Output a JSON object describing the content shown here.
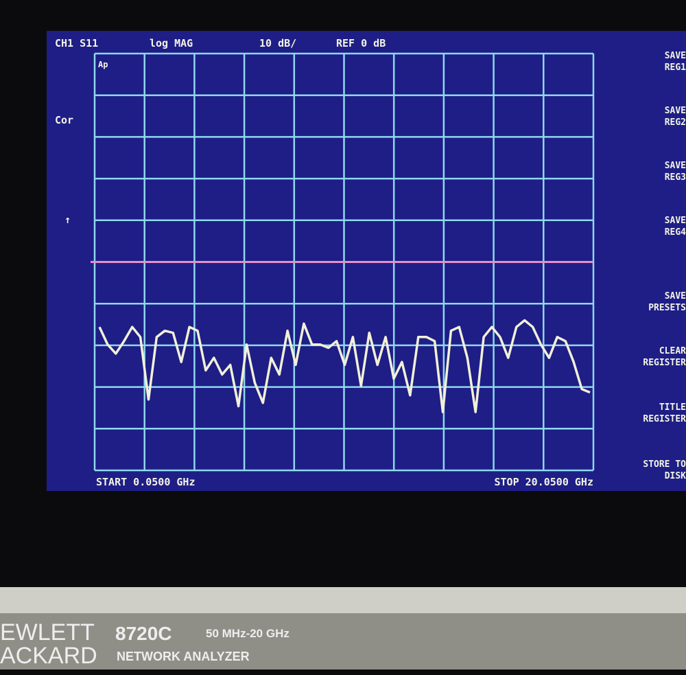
{
  "screen": {
    "header": {
      "channel": "CH1 S11",
      "format": "log MAG",
      "scale": "10 dB/",
      "reference": "REF 0 dB"
    },
    "side_labels": [
      "Cor",
      "↑"
    ],
    "grid_label": "Ap",
    "trace": {
      "ylim": [
        -50,
        50
      ],
      "reference_level": 0,
      "values": [
        -15.6,
        -19.8,
        -22,
        -19,
        -15.6,
        -18,
        -33,
        -18,
        -16.5,
        -17,
        -24,
        -15.6,
        -16.5,
        -26,
        -23,
        -27,
        -24.7,
        -34.6,
        -19.8,
        -29,
        -33.8,
        -23,
        -27,
        -16.5,
        -24.7,
        -14.8,
        -19.8,
        -19.8,
        -20.6,
        -19,
        -24.7,
        -18,
        -29.7,
        -17,
        -24.7,
        -18,
        -28,
        -24,
        -32,
        -18,
        -18,
        -19,
        -36,
        -16.5,
        -15.6,
        -23,
        -36,
        -18,
        -15.6,
        -18,
        -23,
        -15.6,
        -14,
        -15.6,
        -19.8,
        -23,
        -18,
        -19,
        -24,
        -30.5,
        -31.3
      ]
    },
    "start": "START 0.0500 GHz",
    "stop": "STOP 20.0500 GHz",
    "softkeys": [
      [
        "SAVE",
        "REG1"
      ],
      [
        "SAVE",
        "REG2"
      ],
      [
        "SAVE",
        "REG3"
      ],
      [
        "SAVE",
        "REG4"
      ],
      [
        "SAVE",
        "PRESETS"
      ],
      [
        "CLEAR",
        "REGISTER"
      ],
      [
        "TITLE",
        "REGISTER"
      ],
      [
        "STORE TO",
        "DISK"
      ]
    ]
  },
  "bezel": {
    "brand": [
      "EWLETT",
      "ACKARD"
    ],
    "model": "8720C",
    "range": "50 MHz-20 GHz",
    "product": "NETWORK ANALYZER"
  }
}
